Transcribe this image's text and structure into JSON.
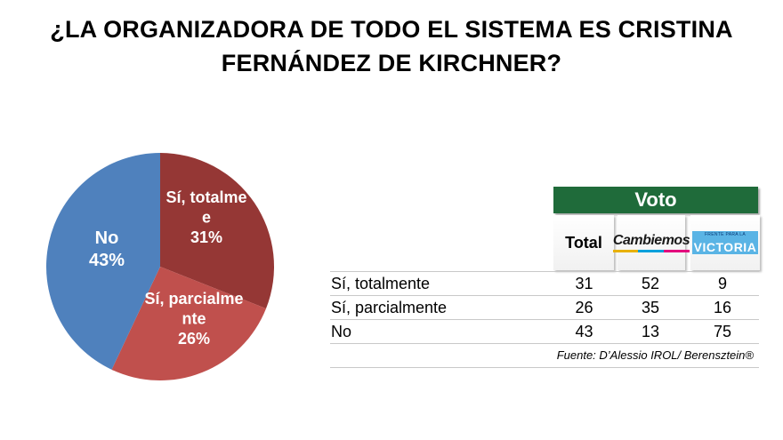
{
  "title": {
    "line1": "¿LA ORGANIZADORA DE TODO EL SISTEMA ES CRISTINA",
    "line2": "FERNÁNDEZ DE KIRCHNER?"
  },
  "chart_data": {
    "type": "pie",
    "categories": [
      "Sí, totalmente",
      "Sí, parcialmente",
      "No"
    ],
    "values": [
      31,
      26,
      43
    ],
    "slice_labels": [
      {
        "lines": [
          "Sí, totalme",
          "e",
          "31%"
        ]
      },
      {
        "lines": [
          "Sí, parcialme",
          "nte",
          "26%"
        ]
      },
      {
        "lines": [
          "No",
          "43%"
        ]
      }
    ],
    "colors": [
      "#953735",
      "#c0504d",
      "#4f81bd"
    ]
  },
  "table": {
    "group_header": "Voto",
    "columns": {
      "total": "Total",
      "cambiemos": "Cambiemos",
      "fpv_top": "FRENTE PARA LA",
      "fpv_main": "VICTORIA"
    },
    "rows": [
      {
        "label": "Sí, totalmente",
        "total": "31",
        "cambiemos": "52",
        "fpv": "9"
      },
      {
        "label": "Sí, parcialmente",
        "total": "26",
        "cambiemos": "35",
        "fpv": "16"
      },
      {
        "label": "No",
        "total": "43",
        "cambiemos": "13",
        "fpv": "75"
      }
    ],
    "source": "Fuente: D’Alessio IROL/ Berensztein®"
  }
}
